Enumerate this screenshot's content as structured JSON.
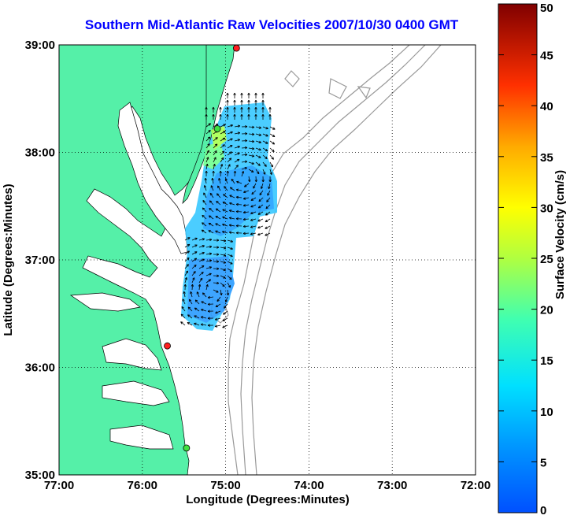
{
  "title": "Southern Mid-Atlantic Raw Velocities 2007/10/30 0400 GMT",
  "xlabel": "Longitude (Degrees:Minutes)",
  "ylabel": "Latitude (Degrees:Minutes)",
  "x_ticks": [
    "77:00",
    "76:00",
    "75:00",
    "74:00",
    "73:00",
    "72:00"
  ],
  "y_ticks": [
    "39:00",
    "38:00",
    "37:00",
    "36:00",
    "35:00"
  ],
  "colorbar": {
    "label": "Surface Velocity (cm/s)",
    "ticks": [
      "50",
      "45",
      "40",
      "35",
      "30",
      "25",
      "20",
      "15",
      "10",
      "5",
      "0"
    ],
    "range": [
      0,
      50
    ]
  },
  "map": {
    "lon_range": [
      -77,
      -72
    ],
    "lat_range": [
      35,
      39
    ],
    "land_color": "#55f0a8",
    "water_color": "#ffffff",
    "bathymetry_color": "#999999",
    "grid": "dotted",
    "stations": [
      {
        "lon": -74.87,
        "lat": 38.97,
        "color": "#ff2020"
      },
      {
        "lon": -75.1,
        "lat": 38.22,
        "color": "#40e040"
      },
      {
        "lon": -75.7,
        "lat": 36.2,
        "color": "#ff2020"
      },
      {
        "lon": -75.47,
        "lat": 35.25,
        "color": "#40e040"
      }
    ]
  }
}
